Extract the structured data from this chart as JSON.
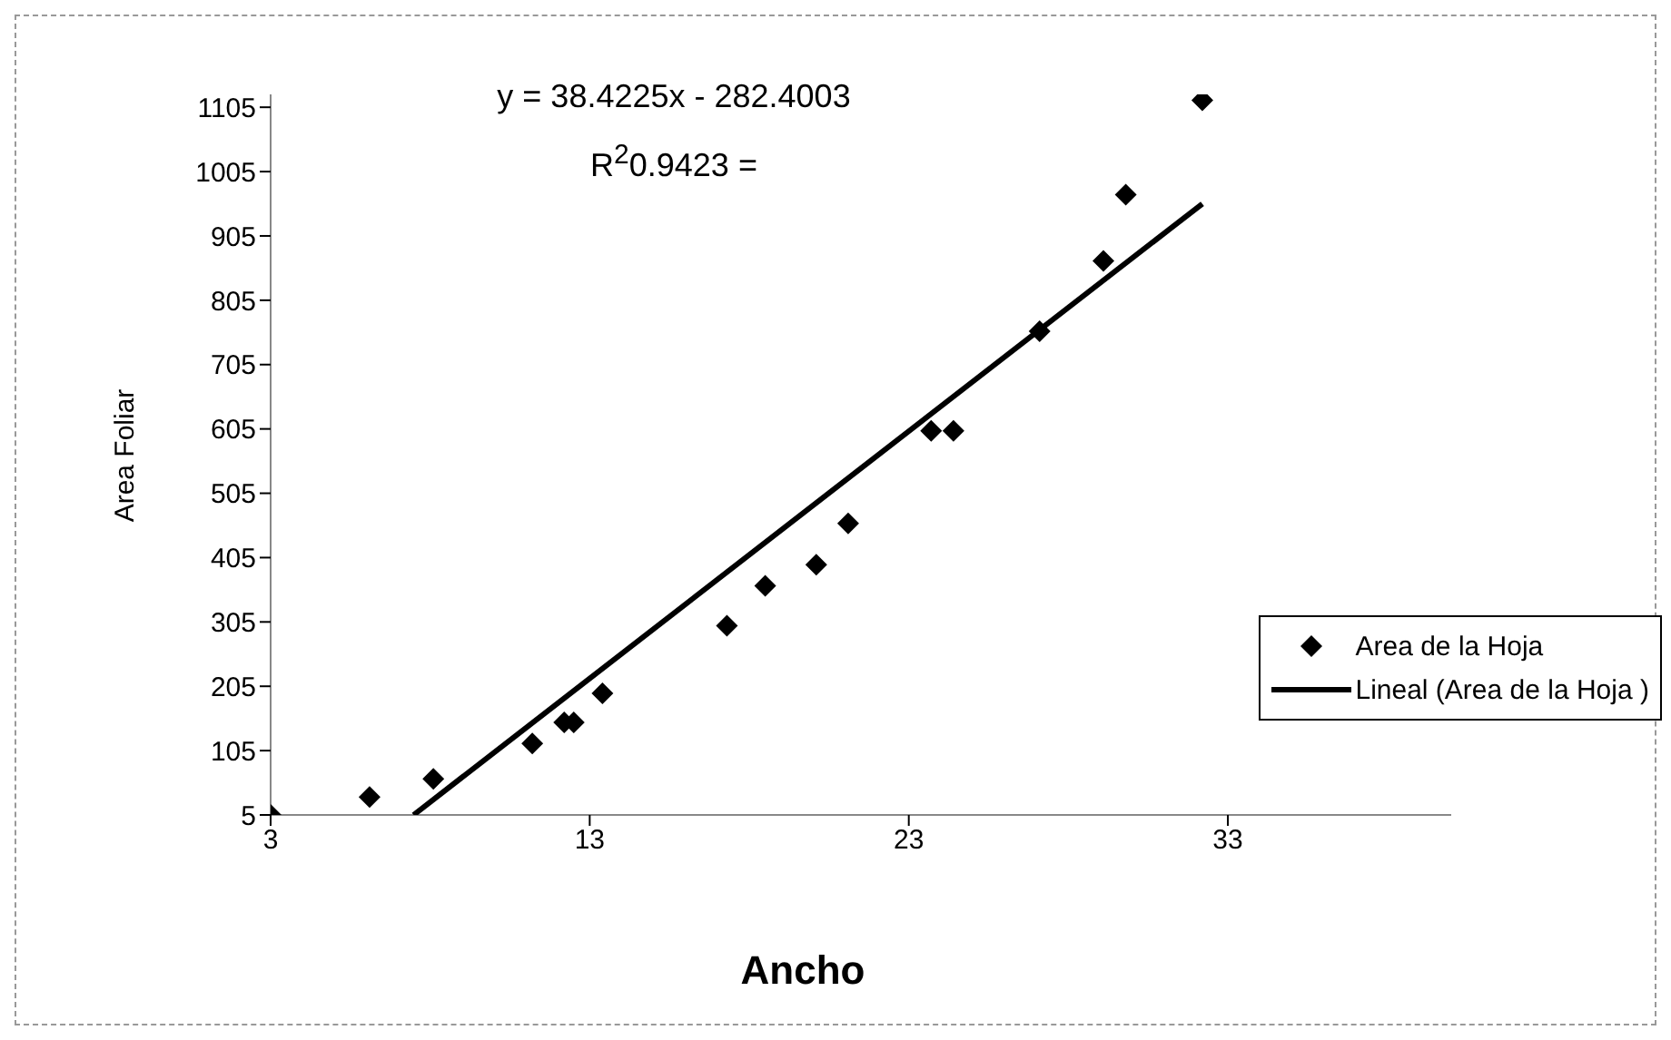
{
  "chart_data": {
    "type": "scatter",
    "xlabel": "Ancho",
    "ylabel": "Area Foliar",
    "x": [
      3,
      6.1,
      8.1,
      11.2,
      12.2,
      12.5,
      13.4,
      17.3,
      18.5,
      20.1,
      21.1,
      23.7,
      24.4,
      27.1,
      29.1,
      29.8,
      32.2
    ],
    "series": [
      {
        "name": "Area de la Hoja",
        "type": "scatter",
        "color": "#000000",
        "marker": "diamond",
        "values": [
          5,
          33,
          61,
          116,
          149,
          149,
          194,
          299,
          361,
          394,
          458,
          602,
          602,
          757,
          866,
          969,
          1116
        ]
      },
      {
        "name": "Lineal (Area de la Hoja )",
        "type": "line",
        "color": "#000000",
        "marker": "none",
        "x": [
          7.48,
          32.2
        ],
        "values": [
          5,
          955
        ]
      }
    ],
    "xlim": [
      3,
      40
    ],
    "xticks": [
      3,
      13,
      23,
      33
    ],
    "ylim": [
      5,
      1125
    ],
    "yticks": [
      5,
      105,
      205,
      305,
      405,
      505,
      605,
      705,
      805,
      905,
      1005,
      1105
    ],
    "grid": false,
    "legend": "right",
    "annotations": [
      "y = 38.4225x - 282.4003",
      "R$^{2}$0.9423 ="
    ]
  }
}
